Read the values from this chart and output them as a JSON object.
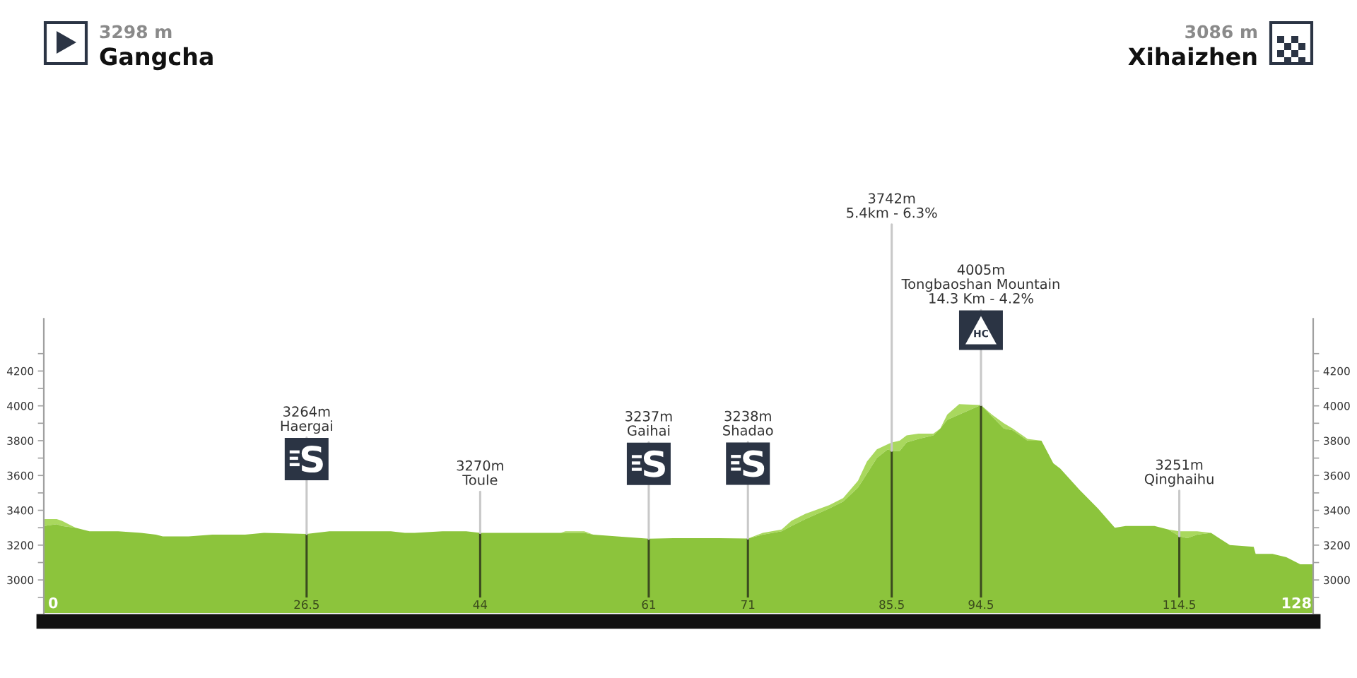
{
  "chart_data": {
    "type": "area",
    "x": [
      0,
      1.3,
      1.8,
      3.2,
      4.6,
      7.5,
      9.8,
      11.3,
      12,
      14.6,
      17,
      20.3,
      22.2,
      26.5,
      28.8,
      33.6,
      35,
      36.4,
      37.4,
      40.2,
      42.6,
      44,
      46.9,
      52.1,
      52.6,
      54.5,
      55.4,
      57.8,
      61,
      63.5,
      67.8,
      71,
      72.5,
      74.4,
      75.4,
      76.8,
      79.2,
      80.6,
      82.1,
      83,
      84,
      85.1,
      85.5,
      86.3,
      87,
      88.2,
      89.7,
      90.4,
      91.1,
      92.3,
      94.5,
      95.6,
      96.8,
      97.7,
      99.2,
      100.6,
      101.8,
      102.5,
      104.4,
      106.3,
      108,
      109.1,
      112,
      113.4,
      114.5,
      115.3,
      116.3,
      117.7,
      119.6,
      122,
      122.2,
      123.9,
      125.3,
      126.7,
      128
    ],
    "series": [
      {
        "color": "#a9d85e",
        "values": [
          3350,
          3350,
          3340,
          3300,
          3280,
          3280,
          3270,
          3260,
          3250,
          3250,
          3260,
          3260,
          3270,
          3264,
          3280,
          3280,
          3280,
          3270,
          3270,
          3280,
          3280,
          3270,
          3270,
          3270,
          3280,
          3280,
          3260,
          3250,
          3237,
          3240,
          3240,
          3238,
          3270,
          3290,
          3340,
          3380,
          3430,
          3470,
          3570,
          3680,
          3750,
          3780,
          3790,
          3800,
          3830,
          3840,
          3840,
          3870,
          3950,
          4010,
          4005,
          3950,
          3900,
          3870,
          3810,
          3800,
          3670,
          3640,
          3520,
          3410,
          3300,
          3310,
          3310,
          3290,
          3280,
          3280,
          3280,
          3270,
          3200,
          3190,
          3150,
          3150,
          3130,
          3090,
          3090
        ]
      },
      {
        "color": "#8cc43c",
        "values": [
          3310,
          3320,
          3310,
          3300,
          3280,
          3280,
          3270,
          3260,
          3250,
          3250,
          3260,
          3260,
          3270,
          3264,
          3280,
          3280,
          3280,
          3270,
          3270,
          3280,
          3280,
          3270,
          3270,
          3270,
          3270,
          3270,
          3260,
          3250,
          3237,
          3240,
          3240,
          3238,
          3260,
          3280,
          3310,
          3350,
          3410,
          3450,
          3530,
          3610,
          3700,
          3750,
          3742,
          3740,
          3790,
          3810,
          3830,
          3870,
          3920,
          3950,
          4005,
          3940,
          3870,
          3860,
          3800,
          3800,
          3670,
          3640,
          3520,
          3410,
          3300,
          3310,
          3310,
          3290,
          3251,
          3240,
          3260,
          3270,
          3200,
          3190,
          3150,
          3150,
          3130,
          3090,
          3090
        ]
      }
    ],
    "xlim": [
      0,
      128
    ],
    "xticks": [
      0,
      26.5,
      44,
      61,
      71,
      85.5,
      94.5,
      114.5,
      128
    ],
    "ylim": [
      2810,
      4500
    ],
    "yticks": [
      {
        "value": 2900,
        "label": null
      },
      3000,
      {
        "value": 3100,
        "label": null
      },
      3200,
      {
        "value": 3300,
        "label": null
      },
      3400,
      {
        "value": 3500,
        "label": null
      },
      3600,
      {
        "value": 3700,
        "label": null
      },
      3800,
      {
        "value": 3900,
        "label": null
      },
      4000,
      {
        "value": 4100,
        "label": null
      },
      4200,
      {
        "value": 4300,
        "label": null
      }
    ],
    "y2lim": [
      2810,
      4500
    ],
    "y2ticks": [
      {
        "value": 2900,
        "label": null
      },
      3000,
      {
        "value": 3100,
        "label": null
      },
      3200,
      {
        "value": 3300,
        "label": null
      },
      3400,
      {
        "value": 3500,
        "label": null
      },
      3600,
      {
        "value": 3700,
        "label": null
      },
      3800,
      {
        "value": 3900,
        "label": null
      },
      4000,
      {
        "value": 4100,
        "label": null
      },
      4200,
      {
        "value": 4300,
        "label": null
      }
    ],
    "ref_lines": [
      {
        "axis": "x",
        "value": 26.5,
        "color": "#3b4a1f"
      },
      {
        "axis": "x",
        "value": 44,
        "color": "#3b4a1f"
      },
      {
        "axis": "x",
        "value": 61,
        "color": "#3b4a1f"
      },
      {
        "axis": "x",
        "value": 71,
        "color": "#3b4a1f"
      },
      {
        "axis": "x",
        "value": 85.5,
        "color": "#3b4a1f"
      },
      {
        "axis": "x",
        "value": 94.5,
        "color": "#3b4a1f"
      },
      {
        "axis": "x",
        "value": 114.5,
        "color": "#3b4a1f"
      }
    ],
    "annotations": [
      "3298 m",
      "Gangcha",
      "3086 m",
      "Xihaizhen",
      {
        "text": "3264m\nHaergai",
        "x": 26.5,
        "y": 3264
      },
      {
        "text": "3270m\nToule",
        "x": 44,
        "y": 3270
      },
      {
        "text": "3237m\nGaihai",
        "x": 61,
        "y": 3237
      },
      {
        "text": "3238m\nShadao",
        "x": 71,
        "y": 3238
      },
      {
        "text": "3742m\n5.4km - 6.3%",
        "x": 85.5,
        "y": 3742
      },
      {
        "text": "4005m\nTongbaoshan Mountain\n14.3 Km - 4.2%",
        "x": 94.5,
        "y": 4005
      },
      {
        "text": "3251m\nQinghaihu",
        "x": 114.5,
        "y": 3251
      },
      "HC"
    ]
  }
}
